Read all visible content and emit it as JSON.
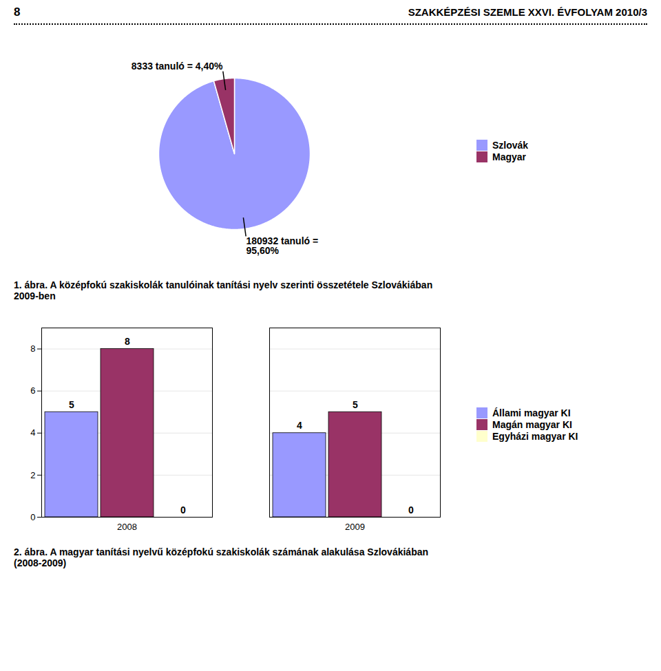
{
  "title": "SZAKKÉPZÉSI SZEMLE XXVI. ÉVFOLYAM 2010/3",
  "annotations": [
    "8"
  ],
  "chart_data": [
    {
      "type": "pie",
      "title": "1. ábra. A középfokú szakiskolák tanulóinak tanítási nyelv szerinti összetétele Szlovákiában\n2009-ben",
      "categories": [
        "Szlovák",
        "Magyar"
      ],
      "values": [
        95.6,
        4.4
      ],
      "value_labels": [
        "180932 tanuló =\n95,60%",
        "8333 tanuló = 4,40%"
      ],
      "colors": [
        "#9999FF",
        "#993366"
      ],
      "data_labels": true,
      "legend": "right"
    },
    {
      "type": "bar",
      "title": "2. ábra. A magyar tanítási nyelvű középfokú szakiskolák számának alakulása Szlovákiában\n(2008-2009)",
      "categories": [
        "2008",
        "2009"
      ],
      "series": [
        {
          "name": "Állami magyar KI",
          "color": "#9999FF",
          "values": [
            5,
            4
          ]
        },
        {
          "name": "Magán magyar KI",
          "color": "#993366",
          "values": [
            8,
            5
          ]
        },
        {
          "name": "Egyházi magyar KI",
          "color": "#FFFFCC",
          "values": [
            0,
            0
          ]
        }
      ],
      "ylim": [
        0,
        9
      ],
      "yticks": [
        0,
        2,
        4,
        6,
        8
      ],
      "grid": true,
      "data_labels": true,
      "legend": "right"
    }
  ]
}
